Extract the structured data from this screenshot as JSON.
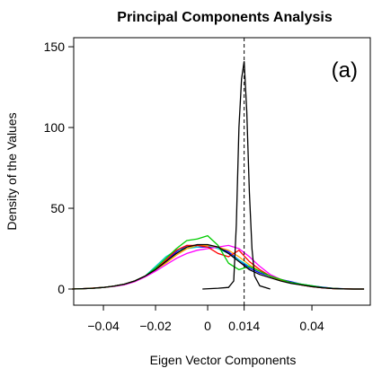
{
  "chart_data": {
    "type": "line",
    "title": "Principal Components Analysis",
    "x_label": "Eigen Vector Components",
    "y_label": "Density of the Values",
    "annotation": "(a)",
    "vline": 0.014,
    "xlim": [
      -0.0514,
      0.0624
    ],
    "ylim": [
      -10,
      155.6
    ],
    "xticks": [
      {
        "value": -0.04,
        "label": "−0.04"
      },
      {
        "value": -0.02,
        "label": "−0.02"
      },
      0,
      0.014,
      0.04
    ],
    "yticks": [
      0,
      50,
      100,
      150
    ],
    "series": [
      {
        "color": "#0000ff",
        "x": [
          -0.052,
          -0.048,
          -0.044,
          -0.04,
          -0.036,
          -0.032,
          -0.028,
          -0.024,
          -0.02,
          -0.016,
          -0.012,
          -0.008,
          -0.004,
          0,
          0.004,
          0.008,
          0.012,
          0.016,
          0.02,
          0.024,
          0.028,
          0.032,
          0.036,
          0.04,
          0.044,
          0.048,
          0.052,
          0.056,
          0.06
        ],
        "values": [
          0,
          0.2,
          0.5,
          1,
          1.8,
          3,
          5,
          8,
          13,
          17,
          23,
          27,
          26,
          26,
          26,
          23,
          18,
          13,
          10,
          8,
          6,
          4.5,
          3,
          2,
          1.2,
          0.5,
          0.2,
          0,
          0
        ]
      },
      {
        "color": "#00cccc",
        "x": [
          -0.052,
          -0.048,
          -0.044,
          -0.04,
          -0.036,
          -0.032,
          -0.028,
          -0.024,
          -0.02,
          -0.016,
          -0.012,
          -0.008,
          -0.004,
          0,
          0.004,
          0.008,
          0.012,
          0.016,
          0.02,
          0.024,
          0.028,
          0.032,
          0.036,
          0.04,
          0.044,
          0.048,
          0.052,
          0.056,
          0.06
        ],
        "values": [
          0,
          0.2,
          0.5,
          1,
          1.8,
          3,
          5,
          8,
          14,
          20,
          24,
          25,
          26,
          27,
          25,
          22,
          18,
          14,
          11,
          8,
          6,
          4,
          3,
          2,
          1,
          0.4,
          0.1,
          0,
          0
        ]
      },
      {
        "color": "#ff00ff",
        "x": [
          -0.052,
          -0.048,
          -0.044,
          -0.04,
          -0.036,
          -0.032,
          -0.028,
          -0.024,
          -0.02,
          -0.016,
          -0.012,
          -0.008,
          -0.004,
          0,
          0.004,
          0.008,
          0.012,
          0.016,
          0.02,
          0.024,
          0.028,
          0.032,
          0.036,
          0.04,
          0.044,
          0.048,
          0.052,
          0.056,
          0.06
        ],
        "values": [
          0,
          0.2,
          0.5,
          1,
          1.6,
          2.6,
          4.5,
          7.5,
          11,
          15,
          19,
          22,
          24,
          25,
          26,
          27,
          25,
          20,
          14,
          9,
          6,
          4,
          2.5,
          1.5,
          0.8,
          0.3,
          0.1,
          0,
          0
        ]
      },
      {
        "color": "#ffa500",
        "x": [
          -0.052,
          -0.048,
          -0.044,
          -0.04,
          -0.036,
          -0.032,
          -0.028,
          -0.024,
          -0.02,
          -0.016,
          -0.012,
          -0.008,
          -0.004,
          0,
          0.004,
          0.008,
          0.012,
          0.016,
          0.02,
          0.024,
          0.028,
          0.032,
          0.036,
          0.04,
          0.044,
          0.048,
          0.052,
          0.056,
          0.06
        ],
        "values": [
          0,
          0.2,
          0.5,
          1,
          1.8,
          3,
          5,
          8,
          12,
          16,
          21,
          25,
          27,
          27,
          26,
          24,
          20,
          15,
          11,
          8,
          5.5,
          3.8,
          2.5,
          1.5,
          0.8,
          0.3,
          0.1,
          0,
          0
        ]
      },
      {
        "color": "#ff0000",
        "x": [
          -0.052,
          -0.048,
          -0.044,
          -0.04,
          -0.036,
          -0.032,
          -0.028,
          -0.024,
          -0.02,
          -0.016,
          -0.012,
          -0.008,
          -0.004,
          0,
          0.004,
          0.008,
          0.012,
          0.016,
          0.02,
          0.024,
          0.028,
          0.032,
          0.036,
          0.04,
          0.044,
          0.048,
          0.052,
          0.056,
          0.06
        ],
        "values": [
          0,
          0.2,
          0.6,
          1,
          1.8,
          3,
          5,
          8,
          12,
          18,
          24,
          27,
          27,
          26,
          22,
          20,
          24,
          17,
          12,
          8,
          6,
          4,
          2.5,
          1.5,
          0.8,
          0.3,
          0.1,
          0,
          0
        ]
      },
      {
        "color": "#00cc00",
        "x": [
          -0.052,
          -0.048,
          -0.044,
          -0.04,
          -0.036,
          -0.032,
          -0.028,
          -0.024,
          -0.02,
          -0.016,
          -0.012,
          -0.008,
          -0.004,
          0,
          0.004,
          0.008,
          0.012,
          0.016,
          0.02,
          0.024,
          0.028,
          0.032,
          0.036,
          0.04,
          0.044,
          0.048,
          0.052,
          0.056,
          0.06
        ],
        "values": [
          0,
          0.2,
          0.5,
          1,
          1.8,
          3,
          5,
          8,
          13,
          19,
          25,
          30,
          31,
          33,
          27,
          16,
          12,
          14,
          11,
          8,
          6,
          4,
          3,
          2,
          1,
          0.4,
          0.1,
          0,
          0
        ]
      },
      {
        "color": "#000000",
        "x": [
          -0.052,
          -0.048,
          -0.044,
          -0.04,
          -0.036,
          -0.032,
          -0.028,
          -0.024,
          -0.02,
          -0.016,
          -0.012,
          -0.008,
          -0.004,
          0,
          0.004,
          0.008,
          0.012,
          0.016,
          0.02,
          0.024,
          0.028,
          0.032,
          0.036,
          0.04,
          0.044,
          0.048,
          0.052,
          0.056,
          0.06
        ],
        "values": [
          0,
          0.2,
          0.5,
          1,
          1.8,
          3,
          5,
          8,
          12,
          17,
          22,
          26,
          27.5,
          27.5,
          26,
          22,
          17,
          12,
          9,
          7,
          5,
          3.5,
          2.5,
          1.5,
          0.8,
          0.3,
          0.1,
          0,
          0
        ]
      },
      {
        "color": "#000000",
        "x": [
          -0.002,
          0.004,
          0.008,
          0.01,
          0.011,
          0.012,
          0.013,
          0.014,
          0.015,
          0.016,
          0.017,
          0.018,
          0.02,
          0.024
        ],
        "values": [
          0,
          0.5,
          1,
          5,
          40,
          100,
          130,
          141,
          110,
          60,
          25,
          8,
          2,
          0
        ]
      }
    ]
  }
}
